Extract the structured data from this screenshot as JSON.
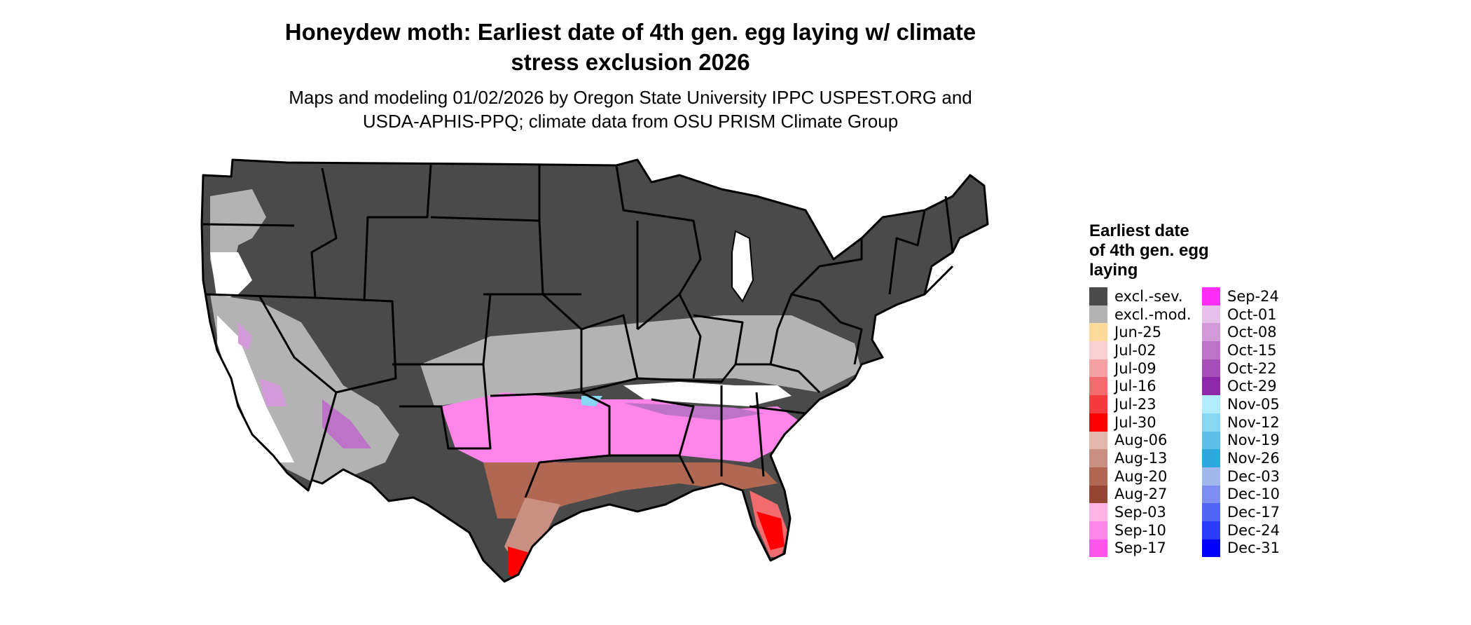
{
  "title_line1": "Honeydew moth: Earliest date of 4th gen. egg laying w/ climate",
  "title_line2": "stress exclusion 2026",
  "subtitle_line1": "Maps and modeling 01/02/2026 by Oregon State University IPPC USPEST.ORG and",
  "subtitle_line2": "USDA-APHIS-PPQ; climate data from OSU PRISM Climate Group",
  "legend": {
    "title_line1": "Earliest date",
    "title_line2": "of 4th gen. egg",
    "title_line3": "laying",
    "column1": [
      {
        "label": "excl.-sev.",
        "color": "#4a4a4a"
      },
      {
        "label": "excl.-mod.",
        "color": "#b3b3b3"
      },
      {
        "label": "Jun-25",
        "color": "#fdd99b"
      },
      {
        "label": "Jul-02",
        "color": "#f8cfd3"
      },
      {
        "label": "Jul-09",
        "color": "#f5a0a3"
      },
      {
        "label": "Jul-16",
        "color": "#f26b6e"
      },
      {
        "label": "Jul-23",
        "color": "#f33a3d"
      },
      {
        "label": "Jul-30",
        "color": "#ff0000"
      },
      {
        "label": "Aug-06",
        "color": "#e2b6aa"
      },
      {
        "label": "Aug-13",
        "color": "#c98f80"
      },
      {
        "label": "Aug-20",
        "color": "#b06853"
      },
      {
        "label": "Aug-27",
        "color": "#954531"
      },
      {
        "label": "Sep-03",
        "color": "#ffb3e6"
      },
      {
        "label": "Sep-10",
        "color": "#ff85e8"
      },
      {
        "label": "Sep-17",
        "color": "#ff55ea"
      }
    ],
    "column2": [
      {
        "label": "Sep-24",
        "color": "#ff2df5"
      },
      {
        "label": "Oct-01",
        "color": "#e6c0ea"
      },
      {
        "label": "Oct-08",
        "color": "#d29ad8"
      },
      {
        "label": "Oct-15",
        "color": "#bd73c8"
      },
      {
        "label": "Oct-22",
        "color": "#a64db8"
      },
      {
        "label": "Oct-29",
        "color": "#8e28a8"
      },
      {
        "label": "Nov-05",
        "color": "#b0ecfb"
      },
      {
        "label": "Nov-12",
        "color": "#87d6f2"
      },
      {
        "label": "Nov-19",
        "color": "#5cbfe6"
      },
      {
        "label": "Nov-26",
        "color": "#2ea8dd"
      },
      {
        "label": "Dec-03",
        "color": "#a0b8ec"
      },
      {
        "label": "Dec-10",
        "color": "#7c8ef0"
      },
      {
        "label": "Dec-17",
        "color": "#5065f4"
      },
      {
        "label": "Dec-24",
        "color": "#2a3cf8"
      },
      {
        "label": "Dec-31",
        "color": "#0000ff"
      }
    ]
  },
  "colors": {
    "state_border": "#000000",
    "background": "#ffffff"
  }
}
